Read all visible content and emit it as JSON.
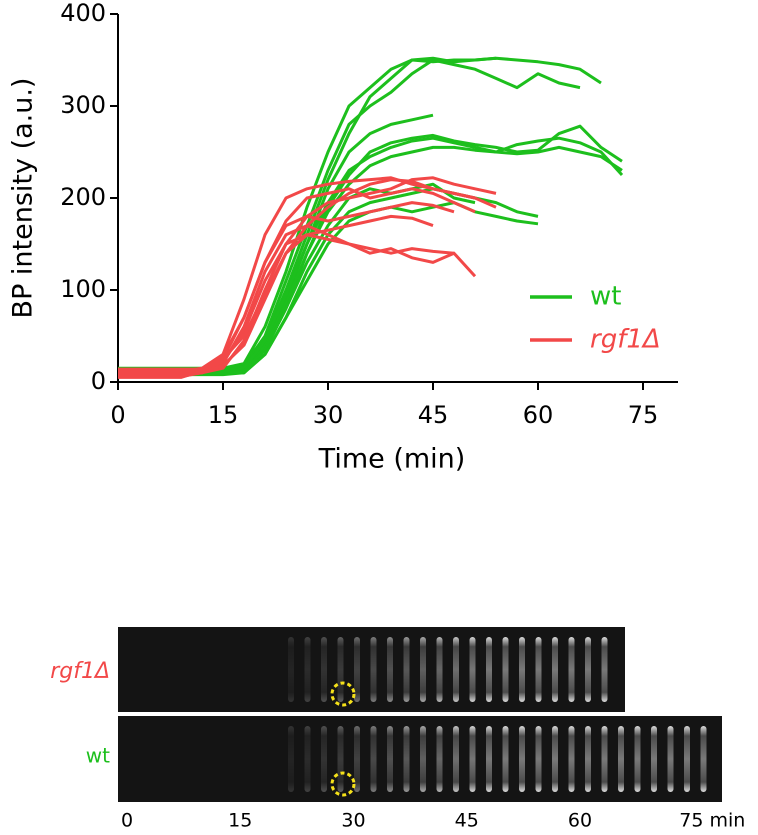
{
  "chart_data": {
    "type": "line",
    "x_label": "Time (min)",
    "y_label": "BP intensity (a.u.)",
    "x": [
      0,
      3,
      6,
      9,
      12,
      15,
      18,
      21,
      24,
      27,
      30,
      33,
      36,
      39,
      42,
      45,
      48,
      51,
      54,
      57,
      60,
      63,
      66,
      69,
      72
    ],
    "xlim": [
      0,
      80
    ],
    "ylim": [
      0,
      400
    ],
    "xticks": [
      0,
      15,
      30,
      45,
      60,
      75
    ],
    "yticks": [
      0,
      100,
      200,
      300,
      400
    ],
    "series": [
      {
        "name": "wt",
        "color": "#1dbf1d",
        "traces": [
          [
            10,
            10,
            10,
            10,
            10,
            10,
            15,
            45,
            100,
            160,
            220,
            270,
            310,
            330,
            350,
            352,
            348,
            350,
            352,
            350,
            348,
            345,
            340,
            325,
            null
          ],
          [
            12,
            12,
            12,
            12,
            12,
            12,
            18,
            50,
            110,
            170,
            230,
            280,
            300,
            315,
            335,
            350,
            345,
            340,
            330,
            320,
            335,
            325,
            320,
            null,
            null
          ],
          [
            15,
            15,
            15,
            15,
            15,
            15,
            20,
            60,
            120,
            190,
            250,
            300,
            320,
            340,
            350,
            348,
            350,
            350,
            352,
            null,
            null,
            null,
            null,
            null,
            null
          ],
          [
            10,
            10,
            10,
            10,
            10,
            10,
            12,
            40,
            90,
            150,
            210,
            250,
            270,
            280,
            285,
            290,
            null,
            null,
            null,
            null,
            null,
            null,
            null,
            null,
            null
          ],
          [
            8,
            8,
            8,
            8,
            8,
            8,
            10,
            35,
            80,
            140,
            190,
            225,
            250,
            260,
            265,
            268,
            262,
            258,
            255,
            250,
            252,
            270,
            278,
            255,
            240
          ],
          [
            10,
            10,
            10,
            10,
            10,
            10,
            12,
            40,
            85,
            140,
            185,
            215,
            235,
            245,
            250,
            255,
            255,
            252,
            250,
            248,
            250,
            255,
            250,
            245,
            230
          ],
          [
            10,
            10,
            10,
            10,
            10,
            10,
            15,
            45,
            95,
            150,
            195,
            230,
            245,
            255,
            262,
            265,
            260,
            255,
            250,
            258,
            262,
            265,
            260,
            250,
            225
          ],
          [
            10,
            10,
            10,
            10,
            10,
            10,
            10,
            30,
            70,
            120,
            160,
            185,
            195,
            200,
            205,
            210,
            205,
            200,
            195,
            185,
            180,
            null,
            null,
            null,
            null
          ],
          [
            10,
            10,
            10,
            10,
            10,
            10,
            12,
            35,
            80,
            130,
            170,
            200,
            210,
            205,
            210,
            215,
            200,
            195,
            null,
            null,
            null,
            null,
            null,
            null,
            null
          ],
          [
            12,
            12,
            12,
            12,
            12,
            12,
            10,
            30,
            70,
            110,
            150,
            175,
            185,
            190,
            185,
            190,
            195,
            185,
            180,
            175,
            172,
            null,
            null,
            null,
            null
          ]
        ]
      },
      {
        "name": "rgf1Δ",
        "color": "#f24848",
        "traces": [
          [
            10,
            10,
            10,
            10,
            12,
            25,
            70,
            130,
            175,
            200,
            205,
            210,
            200,
            205,
            210,
            205,
            195,
            185,
            null,
            null,
            null,
            null,
            null,
            null,
            null
          ],
          [
            12,
            12,
            12,
            12,
            15,
            30,
            90,
            160,
            200,
            210,
            215,
            218,
            220,
            222,
            215,
            210,
            205,
            200,
            190,
            null,
            null,
            null,
            null,
            null,
            null
          ],
          [
            8,
            8,
            8,
            8,
            10,
            20,
            60,
            120,
            160,
            170,
            160,
            150,
            145,
            140,
            145,
            142,
            140,
            null,
            null,
            null,
            null,
            null,
            null,
            null,
            null
          ],
          [
            10,
            10,
            10,
            10,
            12,
            22,
            55,
            110,
            150,
            160,
            155,
            150,
            140,
            145,
            135,
            130,
            140,
            115,
            null,
            null,
            null,
            null,
            null,
            null,
            null
          ],
          [
            6,
            6,
            6,
            6,
            10,
            15,
            45,
            100,
            150,
            180,
            195,
            200,
            205,
            210,
            220,
            222,
            215,
            210,
            205,
            null,
            null,
            null,
            null,
            null,
            null
          ],
          [
            14,
            14,
            14,
            14,
            14,
            28,
            70,
            130,
            170,
            180,
            175,
            180,
            185,
            190,
            195,
            192,
            185,
            null,
            null,
            null,
            null,
            null,
            null,
            null,
            null
          ],
          [
            5,
            5,
            5,
            5,
            12,
            25,
            50,
            95,
            140,
            160,
            165,
            170,
            175,
            180,
            178,
            170,
            null,
            null,
            null,
            null,
            null,
            null,
            null,
            null,
            null
          ],
          [
            8,
            8,
            8,
            8,
            10,
            18,
            40,
            90,
            140,
            170,
            190,
            205,
            215,
            220,
            218,
            210,
            205,
            200,
            null,
            null,
            null,
            null,
            null,
            null,
            null
          ]
        ]
      }
    ]
  },
  "kymograph": {
    "rows": [
      {
        "label": "rgf1Δ"
      },
      {
        "label": "wt"
      }
    ],
    "ticks": [
      0,
      15,
      30,
      45,
      60,
      {
        "value": 75,
        "label": "75 min"
      }
    ]
  }
}
